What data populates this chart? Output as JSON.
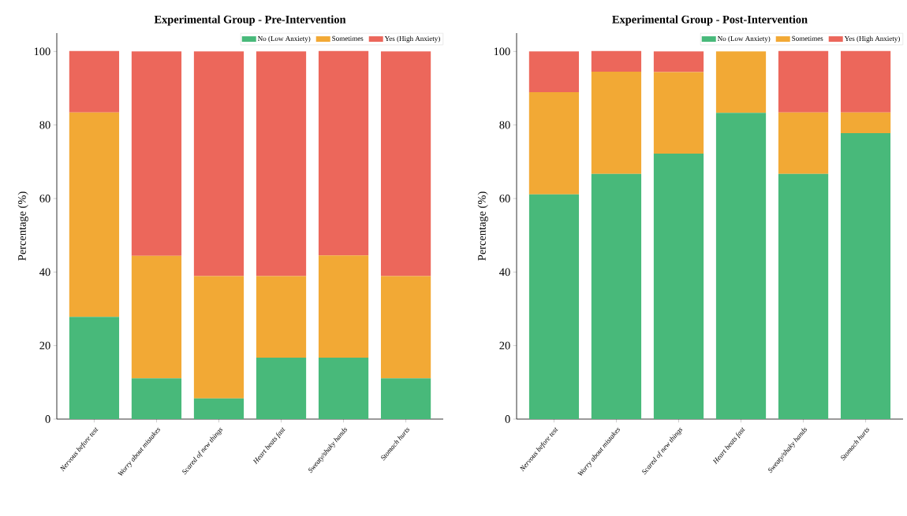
{
  "chart_data": [
    {
      "type": "bar",
      "title": "Experimental Group - Pre-Intervention",
      "ylabel": "Percentage (%)",
      "stacked": true,
      "legend": "top right",
      "categories": [
        "Nervous before test",
        "Worry about mistakes",
        "Scared of new things",
        "Heart beats fast",
        "Sweaty/shaky hands",
        "Stomach hurts"
      ],
      "series": [
        {
          "name": "No (Low Anxiety)",
          "color": "#48b97a",
          "values": [
            27.8,
            11.1,
            5.6,
            16.7,
            16.7,
            11.1
          ]
        },
        {
          "name": "Sometimes",
          "color": "#f2a935",
          "values": [
            55.6,
            33.3,
            33.3,
            22.2,
            27.8,
            27.8
          ]
        },
        {
          "name": "Yes (High Anxiety)",
          "color": "#ec675b",
          "values": [
            16.7,
            55.6,
            61.1,
            61.1,
            55.6,
            61.1
          ]
        }
      ],
      "ylim": [
        0,
        105
      ],
      "yticks": [
        0,
        20,
        40,
        60,
        80,
        100
      ]
    },
    {
      "type": "bar",
      "title": "Experimental Group - Post-Intervention",
      "ylabel": "Percentage (%)",
      "stacked": true,
      "legend": "top right",
      "categories": [
        "Nervous before test",
        "Worry about mistakes",
        "Scared of new things",
        "Heart beats fast",
        "Sweaty/shaky hands",
        "Stomach hurts"
      ],
      "series": [
        {
          "name": "No (Low Anxiety)",
          "color": "#48b97a",
          "values": [
            61.1,
            66.7,
            72.2,
            83.3,
            66.7,
            77.8
          ]
        },
        {
          "name": "Sometimes",
          "color": "#f2a935",
          "values": [
            27.8,
            27.8,
            22.2,
            16.7,
            16.7,
            5.6
          ]
        },
        {
          "name": "Yes (High Anxiety)",
          "color": "#ec675b",
          "values": [
            11.1,
            5.6,
            5.6,
            0,
            16.7,
            16.7
          ]
        }
      ],
      "ylim": [
        0,
        105
      ],
      "yticks": [
        0,
        20,
        40,
        60,
        80,
        100
      ]
    }
  ]
}
